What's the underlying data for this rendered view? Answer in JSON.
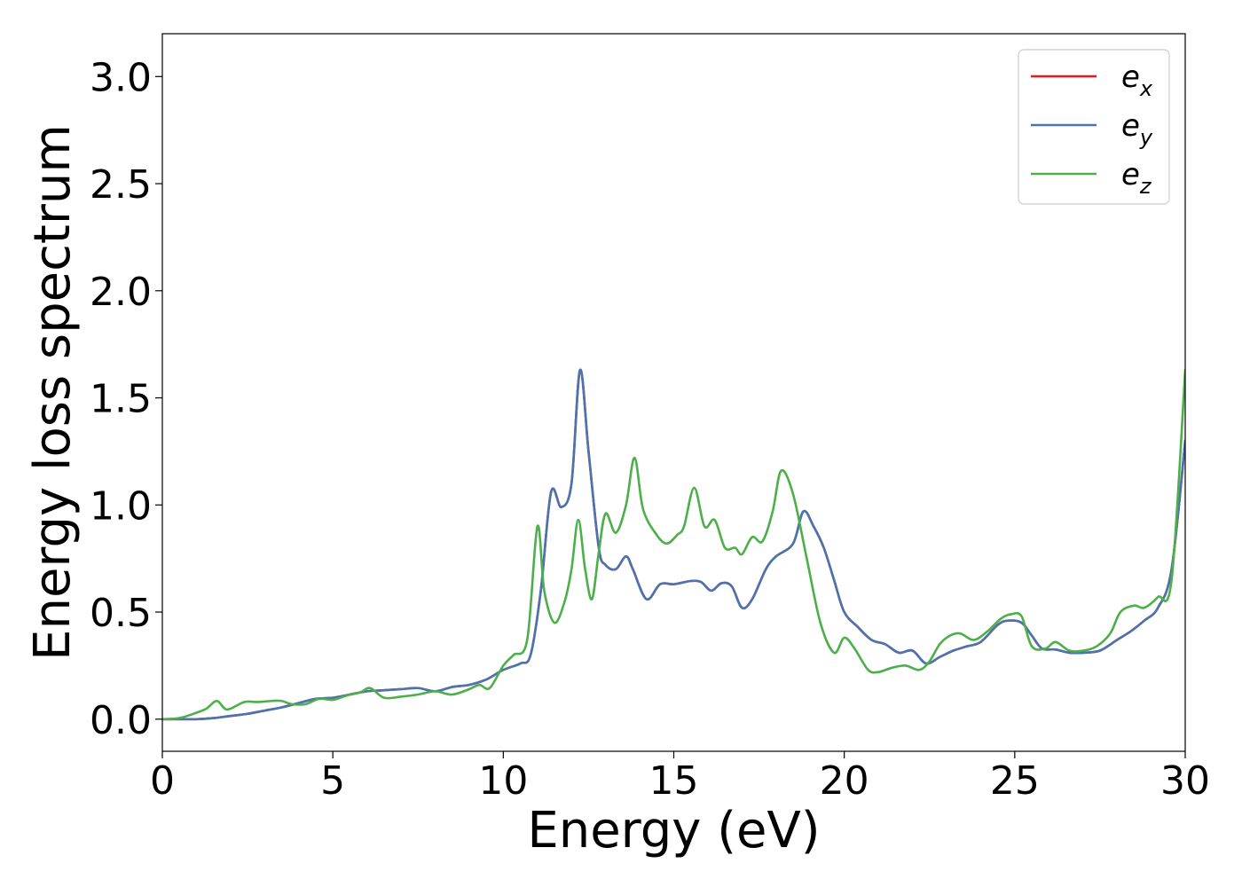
{
  "chart_data": {
    "type": "line",
    "title": "",
    "xlabel": "Energy (eV)",
    "ylabel": "Energy loss spectrum",
    "xlim": [
      0,
      30
    ],
    "ylim": [
      -0.15,
      3.2
    ],
    "xticks": [
      0,
      5,
      10,
      15,
      20,
      25,
      30
    ],
    "xtick_labels": [
      "0",
      "5",
      "10",
      "15",
      "20",
      "25",
      "30"
    ],
    "yticks": [
      0.0,
      0.5,
      1.0,
      1.5,
      2.0,
      2.5,
      3.0
    ],
    "ytick_labels": [
      "0.0",
      "0.5",
      "1.0",
      "1.5",
      "2.0",
      "2.5",
      "3.0"
    ],
    "grid": false,
    "legend_position": "top-right",
    "series": [
      {
        "name": "e",
        "subscript": "x",
        "color": "#e41a1c",
        "points": [
          [
            0,
            0
          ],
          [
            0.5,
            0
          ],
          [
            1,
            0
          ],
          [
            1.5,
            0.005
          ],
          [
            2,
            0.015
          ],
          [
            2.5,
            0.025
          ],
          [
            3,
            0.04
          ],
          [
            3.5,
            0.055
          ],
          [
            4,
            0.075
          ],
          [
            4.5,
            0.095
          ],
          [
            5,
            0.1
          ],
          [
            5.5,
            0.115
          ],
          [
            6,
            0.13
          ],
          [
            6.5,
            0.135
          ],
          [
            7,
            0.14
          ],
          [
            7.5,
            0.145
          ],
          [
            8,
            0.13
          ],
          [
            8.5,
            0.15
          ],
          [
            9,
            0.16
          ],
          [
            9.5,
            0.185
          ],
          [
            10,
            0.23
          ],
          [
            10.5,
            0.26
          ],
          [
            10.8,
            0.3
          ],
          [
            11.1,
            0.6
          ],
          [
            11.4,
            1.06
          ],
          [
            11.7,
            0.99
          ],
          [
            12,
            1.1
          ],
          [
            12.25,
            1.63
          ],
          [
            12.5,
            1.25
          ],
          [
            12.8,
            0.8
          ],
          [
            13,
            0.72
          ],
          [
            13.3,
            0.7
          ],
          [
            13.6,
            0.76
          ],
          [
            13.8,
            0.7
          ],
          [
            14.2,
            0.56
          ],
          [
            14.6,
            0.63
          ],
          [
            15,
            0.63
          ],
          [
            15.5,
            0.645
          ],
          [
            15.8,
            0.64
          ],
          [
            16.1,
            0.6
          ],
          [
            16.4,
            0.635
          ],
          [
            16.7,
            0.62
          ],
          [
            17,
            0.52
          ],
          [
            17.3,
            0.56
          ],
          [
            17.7,
            0.7
          ],
          [
            18,
            0.76
          ],
          [
            18.5,
            0.82
          ],
          [
            18.8,
            0.97
          ],
          [
            19.1,
            0.9
          ],
          [
            19.4,
            0.8
          ],
          [
            19.7,
            0.65
          ],
          [
            20,
            0.5
          ],
          [
            20.4,
            0.43
          ],
          [
            20.8,
            0.37
          ],
          [
            21.2,
            0.35
          ],
          [
            21.6,
            0.31
          ],
          [
            22,
            0.32
          ],
          [
            22.4,
            0.26
          ],
          [
            22.8,
            0.29
          ],
          [
            23.2,
            0.32
          ],
          [
            23.6,
            0.34
          ],
          [
            24,
            0.36
          ],
          [
            24.5,
            0.44
          ],
          [
            24.8,
            0.46
          ],
          [
            25.2,
            0.45
          ],
          [
            25.5,
            0.39
          ],
          [
            25.8,
            0.33
          ],
          [
            26.2,
            0.325
          ],
          [
            26.6,
            0.31
          ],
          [
            27,
            0.31
          ],
          [
            27.5,
            0.32
          ],
          [
            28,
            0.37
          ],
          [
            28.4,
            0.41
          ],
          [
            28.8,
            0.46
          ],
          [
            29.2,
            0.52
          ],
          [
            29.6,
            0.7
          ],
          [
            30,
            1.3
          ]
        ]
      },
      {
        "name": "e",
        "subscript": "y",
        "color": "#4a74b0",
        "points": [
          [
            0,
            0
          ],
          [
            0.5,
            0
          ],
          [
            1,
            0
          ],
          [
            1.5,
            0.005
          ],
          [
            2,
            0.015
          ],
          [
            2.5,
            0.025
          ],
          [
            3,
            0.04
          ],
          [
            3.5,
            0.055
          ],
          [
            4,
            0.075
          ],
          [
            4.5,
            0.095
          ],
          [
            5,
            0.1
          ],
          [
            5.5,
            0.115
          ],
          [
            6,
            0.13
          ],
          [
            6.5,
            0.135
          ],
          [
            7,
            0.14
          ],
          [
            7.5,
            0.145
          ],
          [
            8,
            0.13
          ],
          [
            8.5,
            0.15
          ],
          [
            9,
            0.16
          ],
          [
            9.5,
            0.185
          ],
          [
            10,
            0.23
          ],
          [
            10.5,
            0.26
          ],
          [
            10.8,
            0.3
          ],
          [
            11.1,
            0.6
          ],
          [
            11.4,
            1.06
          ],
          [
            11.7,
            0.99
          ],
          [
            12,
            1.1
          ],
          [
            12.25,
            1.63
          ],
          [
            12.5,
            1.25
          ],
          [
            12.8,
            0.8
          ],
          [
            13,
            0.72
          ],
          [
            13.3,
            0.7
          ],
          [
            13.6,
            0.76
          ],
          [
            13.8,
            0.7
          ],
          [
            14.2,
            0.56
          ],
          [
            14.6,
            0.63
          ],
          [
            15,
            0.63
          ],
          [
            15.5,
            0.645
          ],
          [
            15.8,
            0.64
          ],
          [
            16.1,
            0.6
          ],
          [
            16.4,
            0.635
          ],
          [
            16.7,
            0.62
          ],
          [
            17,
            0.52
          ],
          [
            17.3,
            0.56
          ],
          [
            17.7,
            0.7
          ],
          [
            18,
            0.76
          ],
          [
            18.5,
            0.82
          ],
          [
            18.8,
            0.97
          ],
          [
            19.1,
            0.9
          ],
          [
            19.4,
            0.8
          ],
          [
            19.7,
            0.65
          ],
          [
            20,
            0.5
          ],
          [
            20.4,
            0.43
          ],
          [
            20.8,
            0.37
          ],
          [
            21.2,
            0.35
          ],
          [
            21.6,
            0.31
          ],
          [
            22,
            0.32
          ],
          [
            22.4,
            0.26
          ],
          [
            22.8,
            0.29
          ],
          [
            23.2,
            0.32
          ],
          [
            23.6,
            0.34
          ],
          [
            24,
            0.36
          ],
          [
            24.5,
            0.44
          ],
          [
            24.8,
            0.46
          ],
          [
            25.2,
            0.45
          ],
          [
            25.5,
            0.39
          ],
          [
            25.8,
            0.33
          ],
          [
            26.2,
            0.325
          ],
          [
            26.6,
            0.31
          ],
          [
            27,
            0.31
          ],
          [
            27.5,
            0.32
          ],
          [
            28,
            0.37
          ],
          [
            28.4,
            0.41
          ],
          [
            28.8,
            0.46
          ],
          [
            29.2,
            0.52
          ],
          [
            29.6,
            0.7
          ],
          [
            30,
            1.3
          ]
        ]
      },
      {
        "name": "e",
        "subscript": "z",
        "color": "#4daf4a",
        "points": [
          [
            0,
            0
          ],
          [
            0.5,
            0.005
          ],
          [
            1,
            0.03
          ],
          [
            1.3,
            0.05
          ],
          [
            1.6,
            0.085
          ],
          [
            1.9,
            0.045
          ],
          [
            2.4,
            0.08
          ],
          [
            2.8,
            0.08
          ],
          [
            3.2,
            0.085
          ],
          [
            3.5,
            0.085
          ],
          [
            3.8,
            0.07
          ],
          [
            4.2,
            0.07
          ],
          [
            4.6,
            0.095
          ],
          [
            5,
            0.09
          ],
          [
            5.4,
            0.11
          ],
          [
            5.8,
            0.125
          ],
          [
            6.1,
            0.145
          ],
          [
            6.5,
            0.1
          ],
          [
            7,
            0.105
          ],
          [
            7.5,
            0.115
          ],
          [
            8,
            0.13
          ],
          [
            8.5,
            0.115
          ],
          [
            9,
            0.14
          ],
          [
            9.3,
            0.16
          ],
          [
            9.6,
            0.145
          ],
          [
            10,
            0.25
          ],
          [
            10.3,
            0.3
          ],
          [
            10.7,
            0.37
          ],
          [
            11,
            0.9
          ],
          [
            11.2,
            0.6
          ],
          [
            11.5,
            0.45
          ],
          [
            11.8,
            0.55
          ],
          [
            12,
            0.7
          ],
          [
            12.2,
            0.93
          ],
          [
            12.4,
            0.7
          ],
          [
            12.6,
            0.56
          ],
          [
            12.8,
            0.78
          ],
          [
            13,
            0.96
          ],
          [
            13.3,
            0.87
          ],
          [
            13.6,
            1.0
          ],
          [
            13.85,
            1.22
          ],
          [
            14.1,
            0.98
          ],
          [
            14.5,
            0.86
          ],
          [
            14.8,
            0.82
          ],
          [
            15.1,
            0.86
          ],
          [
            15.3,
            0.9
          ],
          [
            15.6,
            1.08
          ],
          [
            15.9,
            0.9
          ],
          [
            16.2,
            0.93
          ],
          [
            16.5,
            0.8
          ],
          [
            16.8,
            0.8
          ],
          [
            17,
            0.77
          ],
          [
            17.3,
            0.85
          ],
          [
            17.6,
            0.83
          ],
          [
            17.9,
            0.97
          ],
          [
            18.15,
            1.16
          ],
          [
            18.5,
            1.05
          ],
          [
            18.9,
            0.75
          ],
          [
            19.3,
            0.45
          ],
          [
            19.7,
            0.31
          ],
          [
            20,
            0.38
          ],
          [
            20.3,
            0.33
          ],
          [
            20.7,
            0.23
          ],
          [
            21,
            0.22
          ],
          [
            21.4,
            0.24
          ],
          [
            21.8,
            0.25
          ],
          [
            22.2,
            0.23
          ],
          [
            22.5,
            0.27
          ],
          [
            22.8,
            0.35
          ],
          [
            23.1,
            0.39
          ],
          [
            23.4,
            0.4
          ],
          [
            23.8,
            0.37
          ],
          [
            24.2,
            0.41
          ],
          [
            24.6,
            0.47
          ],
          [
            24.9,
            0.49
          ],
          [
            25.2,
            0.48
          ],
          [
            25.5,
            0.34
          ],
          [
            25.9,
            0.33
          ],
          [
            26.2,
            0.36
          ],
          [
            26.6,
            0.32
          ],
          [
            27,
            0.32
          ],
          [
            27.4,
            0.34
          ],
          [
            27.8,
            0.4
          ],
          [
            28.1,
            0.5
          ],
          [
            28.5,
            0.53
          ],
          [
            28.8,
            0.52
          ],
          [
            29.2,
            0.57
          ],
          [
            29.6,
            0.65
          ],
          [
            30,
            1.63
          ]
        ]
      }
    ]
  }
}
